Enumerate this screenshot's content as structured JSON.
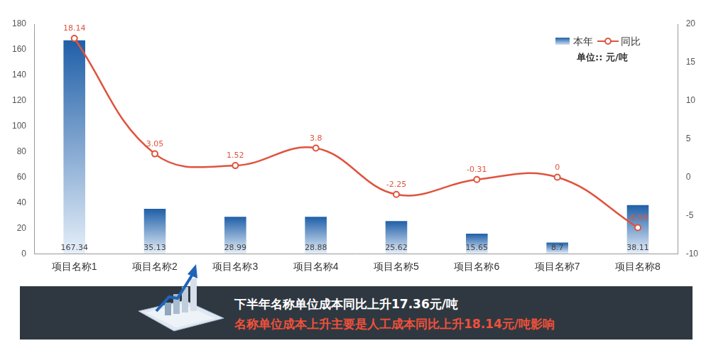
{
  "chart_data": {
    "type": "bar",
    "categories": [
      "项目名称1",
      "项目名称2",
      "项目名称3",
      "项目名称4",
      "项目名称5",
      "项目名称6",
      "项目名称7",
      "项目名称8"
    ],
    "series": [
      {
        "name": "本年",
        "type": "bar",
        "color": "#1f5fa8",
        "values": [
          167.34,
          35.13,
          28.99,
          28.88,
          25.62,
          15.65,
          8.7,
          38.11
        ]
      },
      {
        "name": "同比",
        "type": "line",
        "axis": "y2",
        "color": "#e0533d",
        "marker": "circle",
        "values": [
          18.14,
          3.05,
          1.52,
          3.8,
          -2.25,
          -0.31,
          0,
          -6.59
        ]
      }
    ],
    "ylim": [
      0,
      180
    ],
    "yticks": [
      0,
      20,
      40,
      60,
      80,
      100,
      120,
      140,
      160,
      180
    ],
    "y2lim": [
      -10,
      20
    ],
    "y2ticks": [
      -10,
      -5,
      0,
      5,
      10,
      15,
      20
    ],
    "grid": false,
    "legend": "top-right",
    "data_labels": true,
    "annotations": [
      "单位:: 元/吨"
    ]
  },
  "banner": {
    "line1": "下半年名称单位成本同比上升17.36元/吨",
    "line2": "名称单位成本上升主要是人工成本同比上升18.14元/吨影响"
  }
}
